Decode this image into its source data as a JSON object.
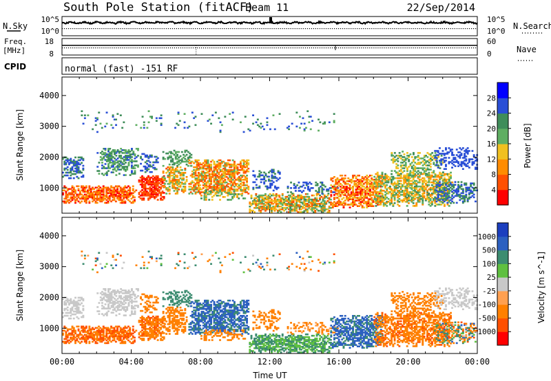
{
  "header": {
    "title": "South Pole Station (fitACF)",
    "beam": "Beam 11",
    "date": "22/Sep/2014"
  },
  "top_panels": {
    "nsky_label": "N.Sky",
    "nsearch_label": "N.Search",
    "nsky_ticks": [
      "10^5",
      "10^0"
    ],
    "nsearch_ticks": [
      "10^5",
      "10^0"
    ],
    "freq_label_line1": "Freq.",
    "freq_label_line2": "[MHz]",
    "freq_ticks": [
      "18",
      "8"
    ],
    "nave_label": "Nave",
    "nave_ticks": [
      "60",
      "0"
    ],
    "cpid_label": "CPID",
    "cpid_text": "normal (fast) -151 RF"
  },
  "chart_data": [
    {
      "type": "heatmap",
      "panel": "power",
      "ylabel": "Slant Range [km]",
      "ylim": [
        180,
        4600
      ],
      "yticks": [
        1000,
        2000,
        3000,
        4000
      ],
      "xlim": [
        0,
        24
      ],
      "colorbar": {
        "label": "Power [dB]",
        "ticks": [
          4,
          8,
          12,
          16,
          20,
          24,
          28
        ],
        "colors": [
          "#0000ff",
          "#2a4fd6",
          "#3f8d5a",
          "#5fae62",
          "#f0c020",
          "#ff8c00",
          "#ff5000",
          "#ff0000"
        ]
      }
    },
    {
      "type": "heatmap",
      "panel": "velocity",
      "ylabel": "Slant Range [km]",
      "ylim": [
        180,
        4600
      ],
      "yticks": [
        1000,
        2000,
        3000,
        4000
      ],
      "xlim": [
        0,
        24
      ],
      "xticks": [
        "00:00",
        "04:00",
        "08:00",
        "12:00",
        "16:00",
        "20:00",
        "00:00"
      ],
      "xlabel": "Time UT",
      "colorbar": {
        "label": "Velocity [m s^-1]",
        "ticks": [
          "1000",
          "500",
          "100",
          "25",
          "-25",
          "-100",
          "-500",
          "-1000"
        ],
        "colors": [
          "#1c3fbf",
          "#2c60c0",
          "#3c8c70",
          "#5fc040",
          "#c8c8c8",
          "#ffa050",
          "#ff8000",
          "#ff5000",
          "#ff0000"
        ]
      }
    }
  ]
}
